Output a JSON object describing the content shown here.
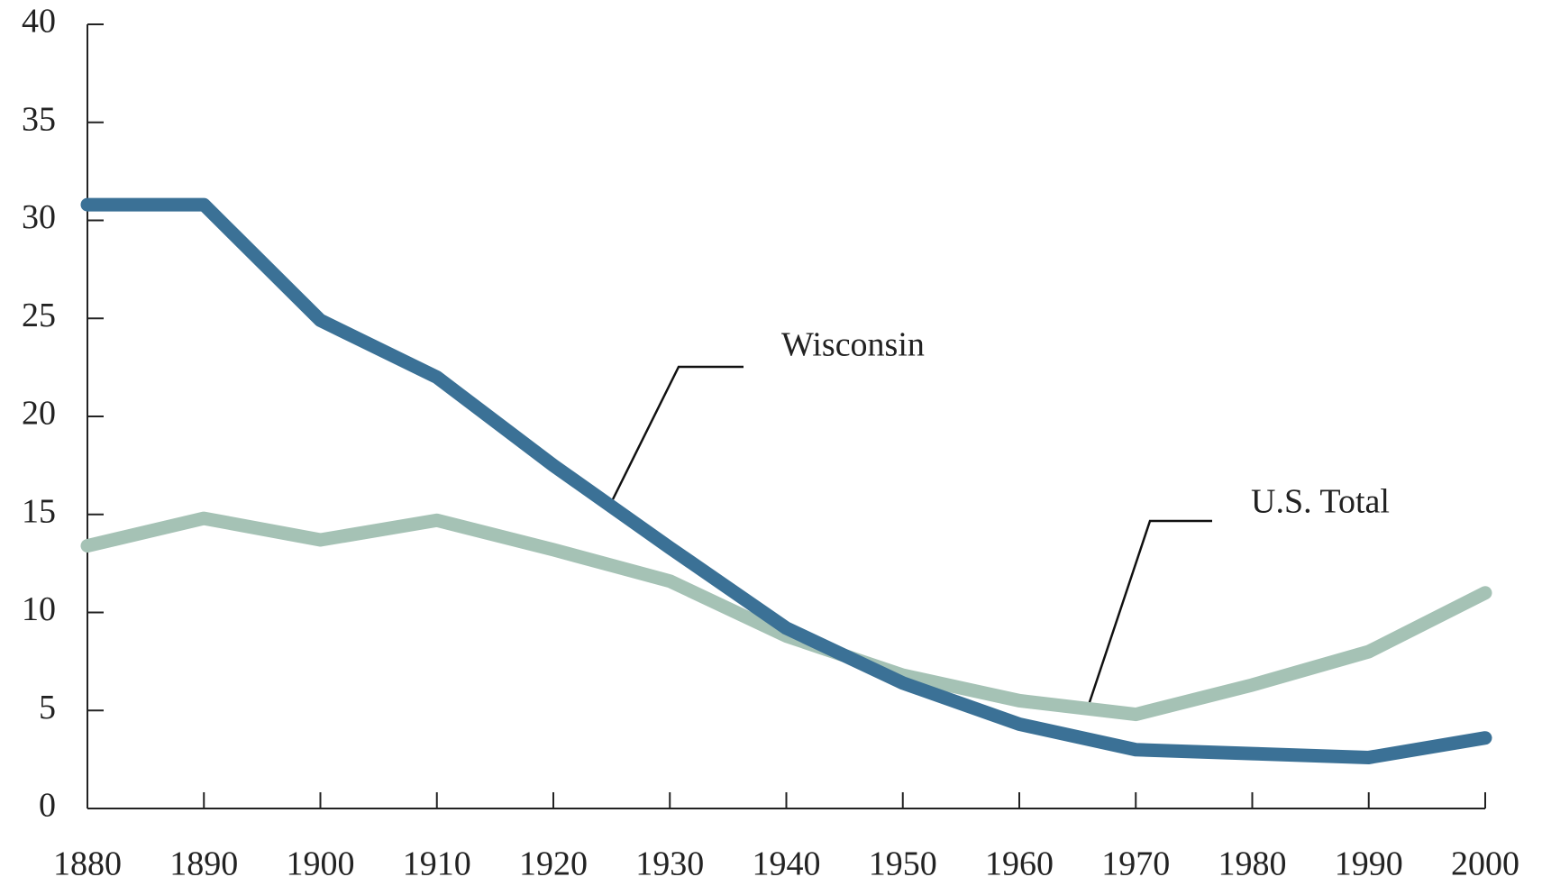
{
  "chart_data": {
    "type": "line",
    "x": [
      1880,
      1890,
      1900,
      1910,
      1920,
      1930,
      1940,
      1950,
      1960,
      1970,
      1980,
      1990,
      2000
    ],
    "series": [
      {
        "name": "Wisconsin",
        "color": "#3b7196",
        "values": [
          30.8,
          30.8,
          24.9,
          22.0,
          17.5,
          13.3,
          9.2,
          6.4,
          4.3,
          3.0,
          2.8,
          2.6,
          3.6
        ]
      },
      {
        "name": "U.S. Total",
        "color": "#a5c2b5",
        "values": [
          13.4,
          14.8,
          13.7,
          14.7,
          13.2,
          11.6,
          8.8,
          6.8,
          5.5,
          4.8,
          6.3,
          8.0,
          11.0
        ]
      }
    ],
    "xlim": [
      1880,
      2000
    ],
    "xticks": [
      1880,
      1890,
      1900,
      1910,
      1920,
      1930,
      1940,
      1950,
      1960,
      1970,
      1980,
      1990,
      2000
    ],
    "ylim": [
      0,
      40
    ],
    "yticks": [
      0,
      5,
      10,
      15,
      20,
      25,
      30,
      35,
      40
    ],
    "grid": false
  }
}
